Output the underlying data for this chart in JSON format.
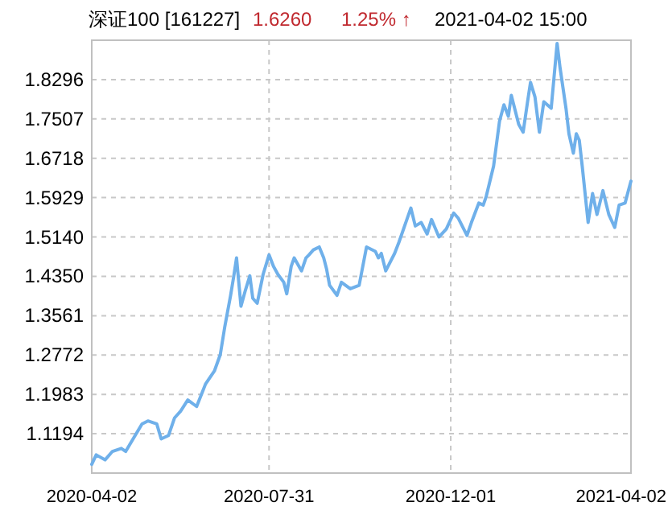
{
  "chart_data": {
    "type": "line",
    "title": "深证100 [161227]",
    "annotations": [
      "1.6260",
      "1.25% ↑",
      "2021-04-02 15:00"
    ],
    "x": [
      "2020-04-02",
      "2020-04-05",
      "2020-04-11",
      "2020-04-16",
      "2020-04-22",
      "2020-04-25",
      "2020-04-30",
      "2020-05-06",
      "2020-05-10",
      "2020-05-16",
      "2020-05-19",
      "2020-05-24",
      "2020-05-28",
      "2020-06-01",
      "2020-06-06",
      "2020-06-12",
      "2020-06-18",
      "2020-06-24",
      "2020-06-28",
      "2020-07-01",
      "2020-07-05",
      "2020-07-07",
      "2020-07-09",
      "2020-07-12",
      "2020-07-15",
      "2020-07-18",
      "2020-07-20",
      "2020-07-23",
      "2020-07-27",
      "2020-07-31",
      "2020-08-03",
      "2020-08-06",
      "2020-08-10",
      "2020-08-12",
      "2020-08-15",
      "2020-08-17",
      "2020-08-22",
      "2020-08-25",
      "2020-08-27",
      "2020-08-30",
      "2020-09-03",
      "2020-09-06",
      "2020-09-08",
      "2020-09-10",
      "2020-09-15",
      "2020-09-18",
      "2020-09-24",
      "2020-09-30",
      "2020-10-05",
      "2020-10-11",
      "2020-10-13",
      "2020-10-15",
      "2020-10-18",
      "2020-10-24",
      "2020-10-27",
      "2020-11-04",
      "2020-11-07",
      "2020-11-11",
      "2020-11-15",
      "2020-11-18",
      "2020-11-23",
      "2020-11-28",
      "2020-12-03",
      "2020-12-06",
      "2020-12-12",
      "2020-12-15",
      "2020-12-20",
      "2020-12-23",
      "2020-12-25",
      "2020-12-30",
      "2021-01-03",
      "2021-01-06",
      "2021-01-09",
      "2021-01-11",
      "2021-01-16",
      "2021-01-19",
      "2021-01-22",
      "2021-01-24",
      "2021-01-27",
      "2021-01-30",
      "2021-02-02",
      "2021-02-07",
      "2021-02-11",
      "2021-02-13",
      "2021-02-17",
      "2021-02-19",
      "2021-02-22",
      "2021-02-24",
      "2021-02-26",
      "2021-02-28",
      "2021-03-04",
      "2021-03-07",
      "2021-03-10",
      "2021-03-14",
      "2021-03-18",
      "2021-03-22",
      "2021-03-25",
      "2021-03-29",
      "2021-04-02"
    ],
    "series": [
      {
        "color": "#6fb0ea",
        "values": [
          1.058,
          1.077,
          1.067,
          1.084,
          1.09,
          1.084,
          1.109,
          1.139,
          1.145,
          1.139,
          1.109,
          1.116,
          1.151,
          1.164,
          1.187,
          1.174,
          1.219,
          1.245,
          1.278,
          1.333,
          1.397,
          1.433,
          1.472,
          1.375,
          1.407,
          1.436,
          1.391,
          1.381,
          1.439,
          1.478,
          1.455,
          1.439,
          1.423,
          1.4,
          1.455,
          1.472,
          1.446,
          1.472,
          1.478,
          1.488,
          1.494,
          1.472,
          1.449,
          1.417,
          1.397,
          1.423,
          1.41,
          1.417,
          1.494,
          1.485,
          1.472,
          1.481,
          1.446,
          1.481,
          1.504,
          1.572,
          1.536,
          1.543,
          1.52,
          1.549,
          1.514,
          1.53,
          1.562,
          1.552,
          1.517,
          1.543,
          1.582,
          1.578,
          1.595,
          1.656,
          1.746,
          1.779,
          1.756,
          1.798,
          1.74,
          1.724,
          1.785,
          1.824,
          1.795,
          1.724,
          1.785,
          1.772,
          1.902,
          1.853,
          1.772,
          1.721,
          1.682,
          1.721,
          1.708,
          1.656,
          1.543,
          1.601,
          1.559,
          1.607,
          1.559,
          1.533,
          1.578,
          1.582,
          1.626
        ]
      }
    ],
    "xlim": [
      "2020-04-02",
      "2021-04-02"
    ],
    "xticks": [
      "2020-04-02",
      "2020-07-31",
      "2020-12-01",
      "2021-04-02"
    ],
    "ylim": [
      1.0405,
      1.9085
    ],
    "yticks": [
      1.1194,
      1.1983,
      1.2772,
      1.3561,
      {
        "value": 1.435,
        "label": "1.4350"
      },
      {
        "value": 1.514,
        "label": "1.5140"
      },
      1.5929,
      1.6718,
      1.7507,
      1.8296
    ],
    "grid": true
  }
}
